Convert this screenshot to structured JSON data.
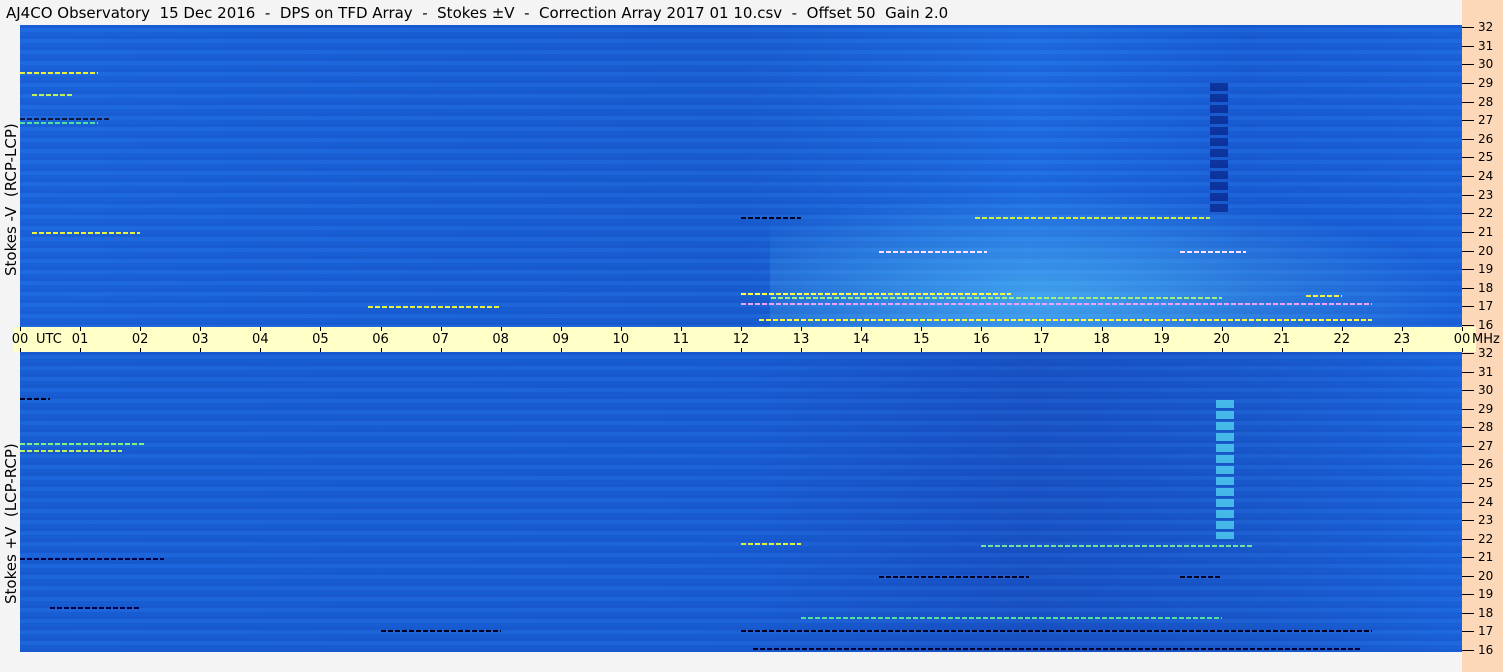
{
  "title": "AJ4CO Observatory  15 Dec 2016  -  DPS on TFD Array  -  Stokes ±V  -  Correction Array 2017 01 10.csv  -  Offset 50  Gain 2.0",
  "chart_data": [
    {
      "type": "heatmap",
      "ylabel": "Stokes -V  (RCP-LCP)",
      "ylim": [
        16,
        32
      ],
      "xlim": [
        0,
        24
      ],
      "colors": {
        "background": "#1a62d8",
        "bright": "#6fe0ff",
        "hot": "#f0f040",
        "cold": "#000030"
      },
      "streaks": [
        {
          "freq": 29.6,
          "start": 0,
          "end": 1.3,
          "color": "#e8f040"
        },
        {
          "freq": 28.4,
          "start": 0.2,
          "end": 0.9,
          "color": "#c0f060"
        },
        {
          "freq": 27.1,
          "start": 0,
          "end": 1.5,
          "color": "#101840"
        },
        {
          "freq": 26.9,
          "start": 0,
          "end": 1.3,
          "color": "#50e0a0"
        },
        {
          "freq": 21.0,
          "start": 0.2,
          "end": 2.0,
          "color": "#e8f040"
        },
        {
          "freq": 17.0,
          "start": 5.8,
          "end": 8.0,
          "color": "#e8f040"
        },
        {
          "freq": 21.8,
          "start": 12.0,
          "end": 13.0,
          "color": "#000020"
        },
        {
          "freq": 21.8,
          "start": 15.9,
          "end": 19.8,
          "color": "#d0f040"
        },
        {
          "freq": 20.0,
          "start": 14.3,
          "end": 16.1,
          "color": "#ffe0ff"
        },
        {
          "freq": 20.0,
          "start": 19.3,
          "end": 20.4,
          "color": "#ffe0ff"
        },
        {
          "freq": 17.7,
          "start": 12.0,
          "end": 16.5,
          "color": "#ffff40"
        },
        {
          "freq": 17.2,
          "start": 12.0,
          "end": 22.5,
          "color": "#f0a0ff"
        },
        {
          "freq": 17.5,
          "start": 12.5,
          "end": 20.0,
          "color": "#a0f080"
        },
        {
          "freq": 16.3,
          "start": 12.3,
          "end": 22.5,
          "color": "#ffff40"
        },
        {
          "freq": 17.6,
          "start": 21.4,
          "end": 22.0,
          "color": "#f0f040"
        }
      ],
      "columns": [
        {
          "time": 19.8,
          "width": 0.3,
          "fmin": 22,
          "fmax": 29,
          "color": "#0a2890"
        }
      ]
    },
    {
      "type": "heatmap",
      "ylabel": "Stokes +V  (LCP-RCP)",
      "ylim": [
        16,
        32
      ],
      "xlim": [
        0,
        24
      ],
      "colors": {
        "background": "#1a60d6",
        "bright": "#6fe0ff",
        "hot": "#f0f040",
        "cold": "#000030"
      },
      "streaks": [
        {
          "freq": 29.6,
          "start": 0,
          "end": 0.5,
          "color": "#000020"
        },
        {
          "freq": 27.2,
          "start": 0,
          "end": 2.1,
          "color": "#80f080"
        },
        {
          "freq": 26.8,
          "start": 0,
          "end": 1.7,
          "color": "#c0f060"
        },
        {
          "freq": 21.0,
          "start": 0,
          "end": 2.4,
          "color": "#000040"
        },
        {
          "freq": 18.3,
          "start": 0.5,
          "end": 2.0,
          "color": "#000040"
        },
        {
          "freq": 17.1,
          "start": 6.0,
          "end": 8.0,
          "color": "#000020"
        },
        {
          "freq": 21.8,
          "start": 12.0,
          "end": 13.0,
          "color": "#e0f040"
        },
        {
          "freq": 21.7,
          "start": 16.0,
          "end": 20.5,
          "color": "#70e0a0"
        },
        {
          "freq": 20.0,
          "start": 14.3,
          "end": 16.8,
          "color": "#000020"
        },
        {
          "freq": 20.0,
          "start": 19.3,
          "end": 20.0,
          "color": "#000020"
        },
        {
          "freq": 17.1,
          "start": 12.0,
          "end": 22.5,
          "color": "#000020"
        },
        {
          "freq": 17.8,
          "start": 13.0,
          "end": 20.0,
          "color": "#50e0a0"
        },
        {
          "freq": 16.1,
          "start": 12.2,
          "end": 22.3,
          "color": "#000030"
        }
      ],
      "columns": [
        {
          "time": 19.9,
          "width": 0.3,
          "fmin": 22,
          "fmax": 29.5,
          "color": "#50d0f0"
        }
      ]
    }
  ],
  "xaxis": {
    "unit_label": "UTC",
    "end_unit": "MHz",
    "ticks": [
      "00",
      "01",
      "02",
      "03",
      "04",
      "05",
      "06",
      "07",
      "08",
      "09",
      "10",
      "11",
      "12",
      "13",
      "14",
      "15",
      "16",
      "17",
      "18",
      "19",
      "20",
      "21",
      "22",
      "23",
      "00"
    ]
  },
  "yaxis_ticks": [
    "32",
    "31",
    "30",
    "29",
    "28",
    "27",
    "26",
    "25",
    "24",
    "23",
    "22",
    "21",
    "20",
    "19",
    "18",
    "17",
    "16"
  ]
}
